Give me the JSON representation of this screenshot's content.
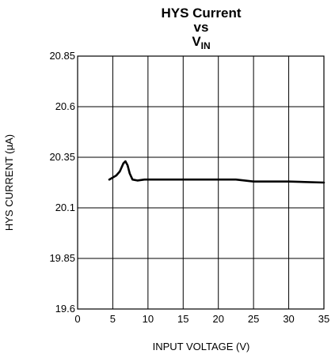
{
  "chart_data": {
    "type": "line",
    "title": {
      "line1": "HYS Current",
      "line2": "vs",
      "line3_main": "V",
      "line3_sub": "IN"
    },
    "xlabel": "INPUT VOLTAGE (V)",
    "ylabel_prefix": "HYS CURRENT (",
    "ylabel_mu": "μ",
    "ylabel_suffix": "A)",
    "xlim": [
      0,
      35
    ],
    "ylim": [
      19.6,
      20.85
    ],
    "x_ticks": [
      0,
      5,
      10,
      15,
      20,
      25,
      30,
      35
    ],
    "y_ticks": [
      "19.6",
      "19.85",
      "20.1",
      "20.35",
      "20.6",
      "20.85"
    ],
    "grid": true,
    "series": [
      {
        "x": [
          4.5,
          5.5,
          6.0,
          6.5,
          6.8,
          7.1,
          7.4,
          7.8,
          8.5,
          9.5,
          22.5,
          25,
          30,
          35
        ],
        "y": [
          20.24,
          20.26,
          20.28,
          20.32,
          20.33,
          20.31,
          20.27,
          20.24,
          20.235,
          20.24,
          20.24,
          20.23,
          20.23,
          20.225
        ]
      }
    ]
  }
}
